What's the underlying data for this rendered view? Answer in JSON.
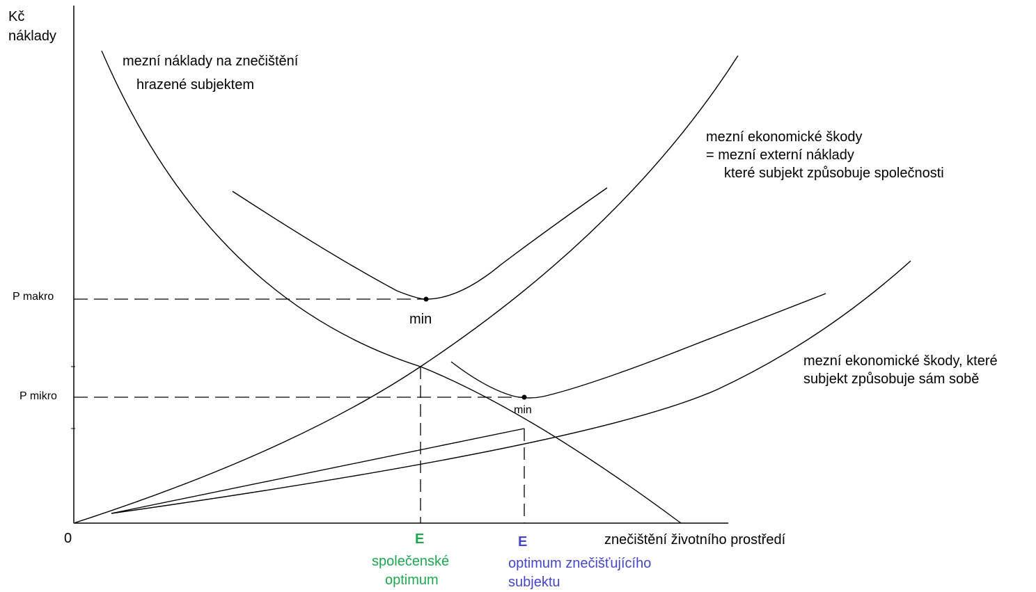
{
  "axes": {
    "y_label_line1": "Kč",
    "y_label_line2": "náklady",
    "x_label": "znečištění životního prostředí",
    "origin": "0"
  },
  "levels": {
    "p_makro": "P makro",
    "p_mikro": "P mikro"
  },
  "curves": {
    "private_cost_line1": "mezní náklady na znečištění",
    "private_cost_line2": "hrazené subjektem",
    "external_line1": "mezní ekonomické škody",
    "external_line2": "= mezní externí náklady",
    "external_line3": "které subjekt způsobuje společnosti",
    "self_damage_line1": "mezní ekonomické škody, které",
    "self_damage_line2": "subjekt způsobuje sám sobě"
  },
  "minima": {
    "min_social": "min",
    "min_private": "min"
  },
  "equilibria": {
    "social_letter": "E",
    "social_line1": "společenské",
    "social_line2": "optimum",
    "private_letter": "E",
    "private_line1": "optimum znečišťujícího",
    "private_line2": "subjektu"
  },
  "colors": {
    "social": "#1fa750",
    "private": "#4646c8"
  }
}
